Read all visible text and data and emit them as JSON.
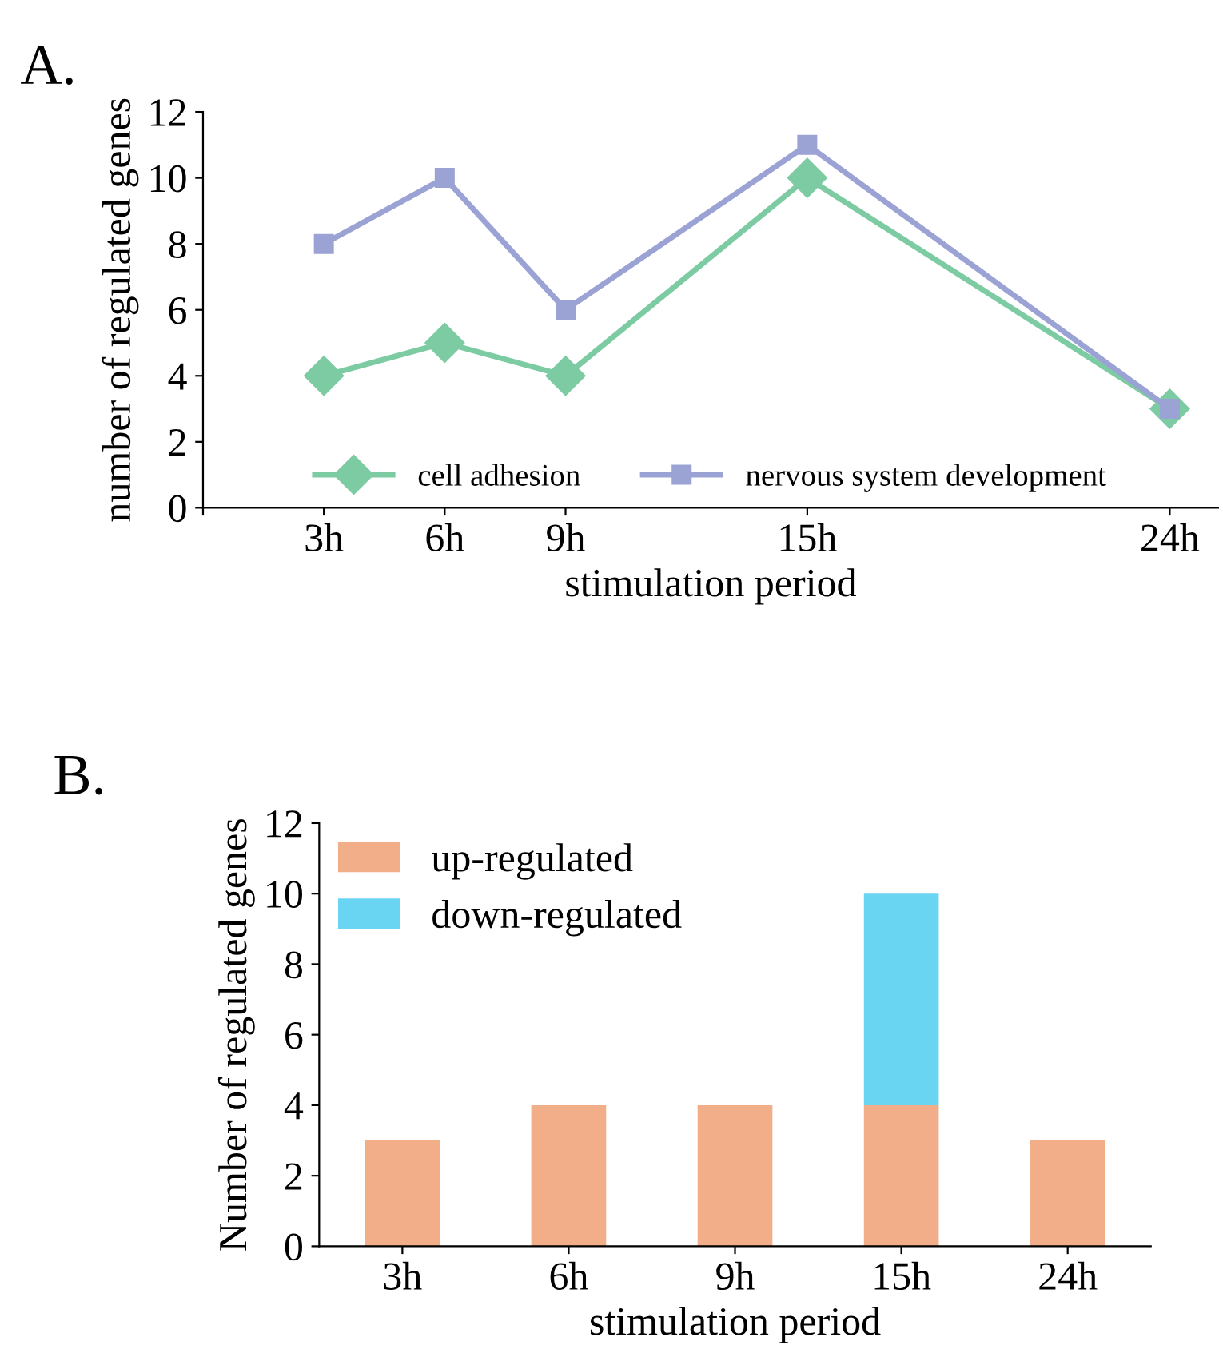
{
  "chart_data": [
    {
      "type": "line",
      "title": "A.",
      "xlabel": "stimulation period",
      "ylabel": "number of regulated genes",
      "x": [
        3,
        6,
        9,
        15,
        24
      ],
      "series": [
        {
          "name": "cell adhesion",
          "color": "#7dcba3",
          "marker": "diamond",
          "values": [
            4,
            5,
            4,
            10,
            3
          ]
        },
        {
          "name": "nervous system development",
          "color": "#9ba2d4",
          "marker": "square",
          "values": [
            8,
            10,
            6,
            11,
            3
          ]
        }
      ],
      "xlim": [
        0,
        25.2
      ],
      "xticks": [
        {
          "value": 0,
          "label": null
        },
        {
          "value": 3,
          "label": "3h"
        },
        {
          "value": 6,
          "label": "6h"
        },
        {
          "value": 9,
          "label": "9h"
        },
        {
          "value": 15,
          "label": "15h"
        },
        {
          "value": 24,
          "label": "24h"
        }
      ],
      "ylim": [
        0,
        12
      ],
      "yticks": [
        0,
        2,
        4,
        6,
        8,
        10,
        12
      ],
      "grid": false,
      "legend": "bottom",
      "line_style": "solid"
    },
    {
      "type": "bar",
      "title": "B.",
      "xlabel": "stimulation period",
      "ylabel": "Number of regulated genes",
      "categories": [
        "3h",
        "6h",
        "9h",
        "15h",
        "24h"
      ],
      "stacked": true,
      "series": [
        {
          "name": "up-regulated",
          "color": "#f2ad89",
          "values": [
            3,
            4,
            4,
            4,
            3
          ]
        },
        {
          "name": "down-regulated",
          "color": "#6ad5f2",
          "values": [
            0,
            0,
            0,
            6,
            0
          ]
        }
      ],
      "ylim": [
        0,
        12
      ],
      "yticks": [
        0,
        2,
        4,
        6,
        8,
        10,
        12
      ],
      "grid": false,
      "legend": "top left"
    }
  ]
}
